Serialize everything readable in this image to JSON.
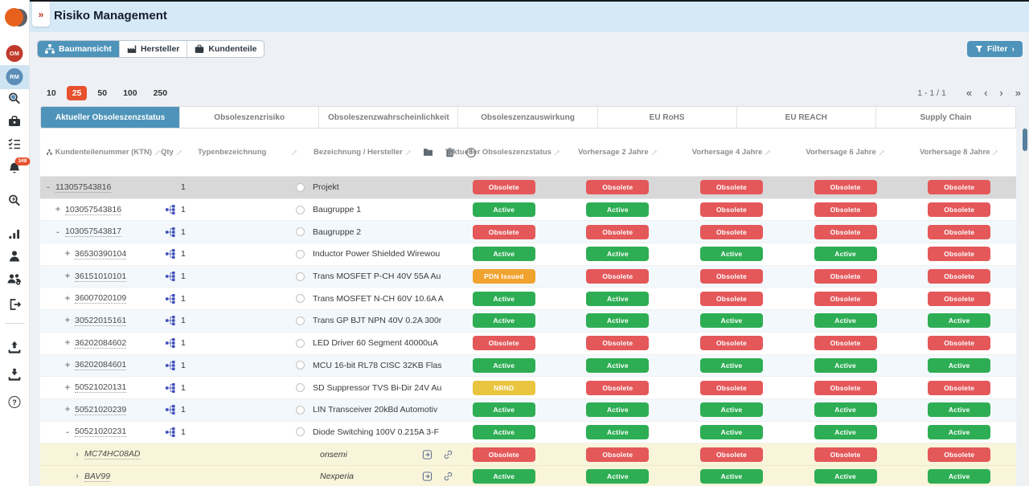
{
  "app": {
    "title": "Risiko Management",
    "breadcrumb_toggle": "»"
  },
  "colors": {
    "accent": "#4e93b9",
    "badge-green": "#2eae54",
    "badge-red": "#e4585a",
    "badge-orange": "#f0a32f",
    "badge-yellow": "#e9c43f"
  },
  "sidebar": {
    "badge_om": "OM",
    "badge_rm": "RM",
    "notification_count": "348",
    "icons": [
      "app-logo",
      "om-module",
      "rm-module",
      "rm-search",
      "toolbox",
      "checklist",
      "notifications",
      "part-search",
      "statistics",
      "user",
      "user-management",
      "logout",
      "upload",
      "download",
      "help"
    ]
  },
  "toolbar": {
    "view_tabs": [
      {
        "label": "Baumansicht",
        "active": true
      },
      {
        "label": "Hersteller",
        "active": false
      },
      {
        "label": "Kundenteile",
        "active": false
      }
    ],
    "filter_label": "Filter",
    "filter_chevron": "›"
  },
  "pagination": {
    "sizes": [
      "10",
      "25",
      "50",
      "100",
      "250"
    ],
    "active_size": "25",
    "range": "1 - 1 / 1",
    "first": "«",
    "prev": "‹",
    "next": "›",
    "last": "»"
  },
  "tabs": [
    {
      "label": "Aktueller Obsoleszenzstatus",
      "active": true
    },
    {
      "label": "Obsoleszenzrisiko",
      "active": false
    },
    {
      "label": "Obsoleszenzwahrscheinlichkeit",
      "active": false
    },
    {
      "label": "Obsoleszenzauswirkung",
      "active": false
    },
    {
      "label": "EU RoHS",
      "active": false
    },
    {
      "label": "EU REACH",
      "active": false
    },
    {
      "label": "Supply Chain",
      "active": false
    }
  ],
  "table": {
    "headers": {
      "ktn": "Kundenteilenummer (KTN)",
      "qty": "Qty",
      "type": "Typenbezeichnung",
      "name": "Bezeichnung / Hersteller",
      "status": "Aktueller Obsoleszenzstatus",
      "f2": "Vorhersage 2 Jahre",
      "f4": "Vorhersage 4 Jahre",
      "f6": "Vorhersage 6 Jahre",
      "f8": "Vorhersage 8 Jahre"
    },
    "rows": [
      {
        "expand": "-",
        "level": 0,
        "ktn": "113057543816",
        "sitemap": false,
        "qty": "1",
        "type": "",
        "desc": "Projekt",
        "mfr": "",
        "icons": false,
        "radio": true,
        "status": "Obsolete",
        "forecasts": [
          "Obsolete",
          "Obsolete",
          "Obsolete",
          "Obsolete"
        ],
        "bg": "sel",
        "italic": false
      },
      {
        "expand": "+",
        "level": 1,
        "ktn": "103057543816",
        "sitemap": true,
        "qty": "1",
        "type": "",
        "desc": "Baugruppe 1",
        "mfr": "",
        "icons": false,
        "radio": true,
        "status": "Active",
        "forecasts": [
          "Active",
          "Obsolete",
          "Obsolete",
          "Obsolete"
        ],
        "bg": "white",
        "italic": false
      },
      {
        "expand": "-",
        "level": 1,
        "ktn": "103057543817",
        "sitemap": true,
        "qty": "1",
        "type": "",
        "desc": "Baugruppe 2",
        "mfr": "",
        "icons": false,
        "radio": true,
        "status": "Obsolete",
        "forecasts": [
          "Obsolete",
          "Obsolete",
          "Obsolete",
          "Obsolete"
        ],
        "bg": "alt",
        "italic": false
      },
      {
        "expand": "+",
        "level": 2,
        "ktn": "36530390104",
        "sitemap": true,
        "qty": "1",
        "type": "",
        "desc": "Inductor Power Shielded Wirewou",
        "mfr": "",
        "icons": false,
        "radio": true,
        "status": "Active",
        "forecasts": [
          "Active",
          "Active",
          "Active",
          "Obsolete"
        ],
        "bg": "white",
        "italic": false
      },
      {
        "expand": "+",
        "level": 2,
        "ktn": "36151010101",
        "sitemap": true,
        "qty": "1",
        "type": "",
        "desc": "Trans MOSFET P-CH 40V 55A Au",
        "mfr": "",
        "icons": false,
        "radio": true,
        "status": "PDN Issued",
        "forecasts": [
          "Obsolete",
          "Obsolete",
          "Obsolete",
          "Obsolete"
        ],
        "bg": "alt",
        "italic": false
      },
      {
        "expand": "+",
        "level": 2,
        "ktn": "36007020109",
        "sitemap": true,
        "qty": "1",
        "type": "",
        "desc": "Trans MOSFET N-CH 60V 10.6A A",
        "mfr": "",
        "icons": false,
        "radio": true,
        "status": "Active",
        "forecasts": [
          "Active",
          "Obsolete",
          "Obsolete",
          "Obsolete"
        ],
        "bg": "white",
        "italic": false
      },
      {
        "expand": "+",
        "level": 2,
        "ktn": "30522015161",
        "sitemap": true,
        "qty": "1",
        "type": "",
        "desc": "Trans GP BJT NPN 40V 0.2A 300r",
        "mfr": "",
        "icons": false,
        "radio": true,
        "status": "Active",
        "forecasts": [
          "Active",
          "Active",
          "Active",
          "Active"
        ],
        "bg": "alt",
        "italic": false
      },
      {
        "expand": "+",
        "level": 2,
        "ktn": "36202084602",
        "sitemap": true,
        "qty": "1",
        "type": "",
        "desc": "LED Driver 60 Segment 40000uA",
        "mfr": "",
        "icons": false,
        "radio": true,
        "status": "Obsolete",
        "forecasts": [
          "Obsolete",
          "Obsolete",
          "Obsolete",
          "Obsolete"
        ],
        "bg": "white",
        "italic": false
      },
      {
        "expand": "+",
        "level": 2,
        "ktn": "36202084601",
        "sitemap": true,
        "qty": "1",
        "type": "",
        "desc": "MCU 16-bit RL78 CISC 32KB Flas",
        "mfr": "",
        "icons": false,
        "radio": true,
        "status": "Active",
        "forecasts": [
          "Active",
          "Active",
          "Active",
          "Active"
        ],
        "bg": "alt",
        "italic": false
      },
      {
        "expand": "+",
        "level": 2,
        "ktn": "50521020131",
        "sitemap": true,
        "qty": "1",
        "type": "",
        "desc": "SD Suppressor TVS Bi-Dir 24V Au",
        "mfr": "",
        "icons": false,
        "radio": true,
        "status": "NRND",
        "forecasts": [
          "Obsolete",
          "Obsolete",
          "Obsolete",
          "Obsolete"
        ],
        "bg": "white",
        "italic": false
      },
      {
        "expand": "+",
        "level": 2,
        "ktn": "50521020239",
        "sitemap": true,
        "qty": "1",
        "type": "",
        "desc": "LIN Transceiver 20kBd Automotiv",
        "mfr": "",
        "icons": false,
        "radio": true,
        "status": "Active",
        "forecasts": [
          "Active",
          "Active",
          "Active",
          "Active"
        ],
        "bg": "alt",
        "italic": false
      },
      {
        "expand": "-",
        "level": 2,
        "ktn": "50521020231",
        "sitemap": true,
        "qty": "1",
        "type": "",
        "desc": "Diode Switching 100V 0.215A 3-F",
        "mfr": "",
        "icons": false,
        "radio": true,
        "status": "Active",
        "forecasts": [
          "Active",
          "Active",
          "Active",
          "Active"
        ],
        "bg": "white",
        "italic": false
      },
      {
        "expand": "›",
        "level": 3,
        "ktn": "MC74HC08AD",
        "sitemap": false,
        "qty": "",
        "type": "",
        "desc": "",
        "mfr": "onsemi",
        "icons": true,
        "radio": false,
        "status": "Obsolete",
        "forecasts": [
          "Obsolete",
          "Obsolete",
          "Obsolete",
          "Obsolete"
        ],
        "bg": "mpn",
        "italic": true
      },
      {
        "expand": "›",
        "level": 3,
        "ktn": "BAV99",
        "sitemap": false,
        "qty": "",
        "type": "",
        "desc": "",
        "mfr": "Nexperia",
        "icons": true,
        "radio": false,
        "status": "Active",
        "forecasts": [
          "Active",
          "Active",
          "Active",
          "Active"
        ],
        "bg": "mpn",
        "italic": true
      }
    ]
  }
}
